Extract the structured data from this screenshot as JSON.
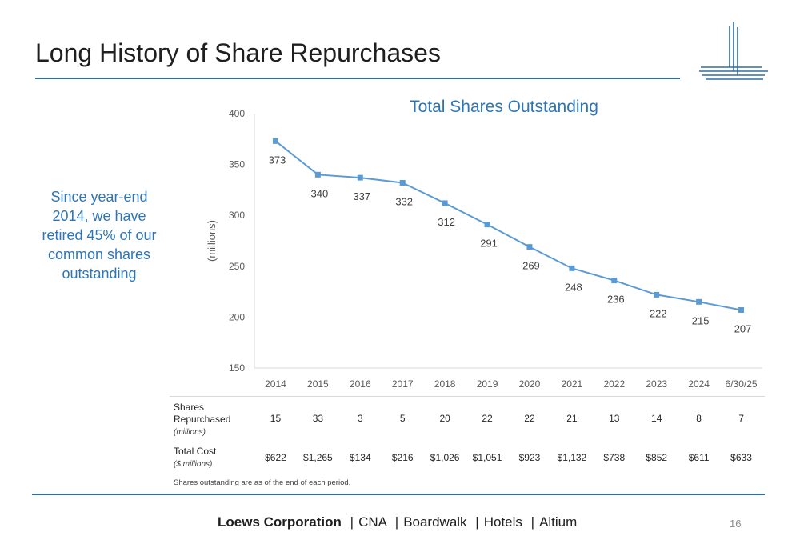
{
  "title": "Long History of Share Repurchases",
  "callout": "Since year-end 2014, we have retired 45% of our common shares outstanding",
  "chart_data": {
    "type": "line",
    "title": "Total Shares Outstanding",
    "ylabel": "(millions)",
    "xlabel": "",
    "ylim": [
      150,
      400
    ],
    "yticks": [
      "400",
      "350",
      "300",
      "250",
      "200",
      "150"
    ],
    "categories": [
      "2014",
      "2015",
      "2016",
      "2017",
      "2018",
      "2019",
      "2020",
      "2021",
      "2022",
      "2023",
      "2024",
      "6/30/25"
    ],
    "values": [
      373,
      340,
      337,
      332,
      312,
      291,
      269,
      248,
      236,
      222,
      215,
      207
    ],
    "color": "#5b9bd5",
    "grid": false
  },
  "table": {
    "rows": [
      {
        "label": "Shares Repurchased",
        "unit": "(millions)",
        "values": [
          "15",
          "33",
          "3",
          "5",
          "20",
          "22",
          "22",
          "21",
          "13",
          "14",
          "8",
          "7"
        ]
      },
      {
        "label": "Total Cost",
        "unit": "($ millions)",
        "values": [
          "$622",
          "$1,265",
          "$134",
          "$216",
          "$1,026",
          "$1,051",
          "$923",
          "$1,132",
          "$738",
          "$852",
          "$611",
          "$633"
        ]
      }
    ]
  },
  "footnote": "Shares outstanding are as of the end of each period.",
  "footer": {
    "brand": "Loews Corporation",
    "items": [
      "CNA",
      "Boardwalk",
      "Hotels",
      "Altium"
    ],
    "separator": "|"
  },
  "page_number": "16",
  "colors": {
    "accent": "#2e6da4",
    "callout": "#2e75b6",
    "series": "#5b9bd5"
  }
}
